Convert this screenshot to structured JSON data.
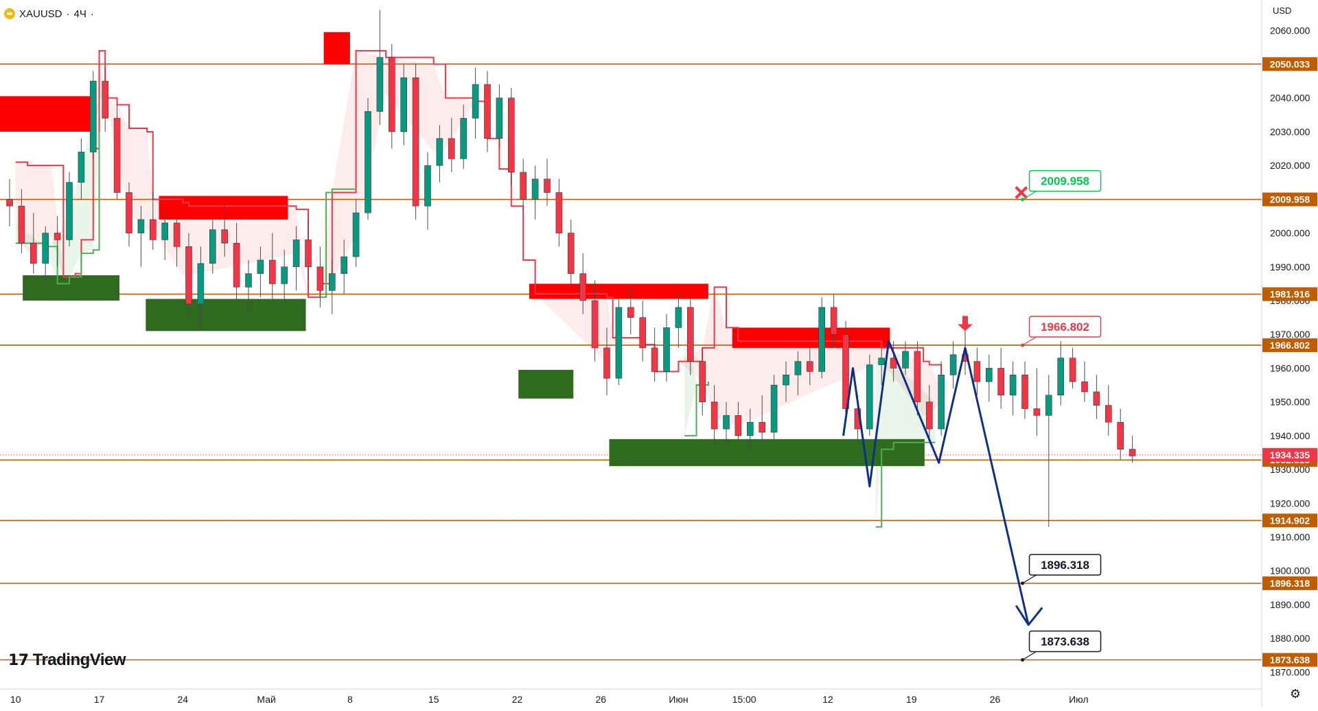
{
  "header": {
    "symbol": "XAUUSD",
    "separator": "·",
    "timeframe": "4Ч",
    "dot": "·"
  },
  "currency": "USD",
  "brand": "TradingView",
  "icons": {
    "symbol": "gold-coin-icon",
    "logo": "tradingview-logo-icon",
    "settings": "gear-icon",
    "invalidation": "cross-icon",
    "entry": "down-arrow-icon"
  },
  "chart_data": {
    "type": "candlestick",
    "ylim": [
      1865,
      2069
    ],
    "y_ticks": [
      1870,
      1880,
      1890,
      1900,
      1910,
      1920,
      1930,
      1940,
      1950,
      1960,
      1970,
      1980,
      1990,
      2000,
      2010,
      2020,
      2030,
      2040,
      2050,
      2060
    ],
    "y_tick_labels": [
      "1870.000",
      "1880.000",
      "1890.000",
      "1900.000",
      "1910.000",
      "1920.000",
      "1930.000",
      "1940.000",
      "1950.000",
      "1960.000",
      "1970.000",
      "1980.000",
      "1990.000",
      "2000.000",
      "2010.000",
      "2020.000",
      "2030.000",
      "2040.000",
      "2050.000",
      "2060.000"
    ],
    "x_labels": [
      {
        "t": 0.5,
        "label": "10"
      },
      {
        "t": 7.5,
        "label": "17"
      },
      {
        "t": 14.5,
        "label": "24"
      },
      {
        "t": 21.5,
        "label": "Май"
      },
      {
        "t": 28.5,
        "label": "8"
      },
      {
        "t": 35.5,
        "label": "15"
      },
      {
        "t": 42.5,
        "label": "22"
      },
      {
        "t": 49.5,
        "label": "26"
      },
      {
        "t": 56.0,
        "label": "Июн"
      },
      {
        "t": 61.5,
        "label": "15:00"
      },
      {
        "t": 68.5,
        "label": "12"
      },
      {
        "t": 75.5,
        "label": "19"
      },
      {
        "t": 82.5,
        "label": "26"
      },
      {
        "t": 89.5,
        "label": "Июл"
      }
    ],
    "x_range": [
      0,
      93
    ],
    "levels": [
      {
        "value": 2050.033,
        "label": "2050.033"
      },
      {
        "value": 2009.958,
        "label": "2009.958"
      },
      {
        "value": 1981.916,
        "label": "1981.916"
      },
      {
        "value": 1966.802,
        "label": "1966.802"
      },
      {
        "value": 1932.815,
        "label": "1932.815"
      },
      {
        "value": 1914.902,
        "label": "1914.902"
      },
      {
        "value": 1896.318,
        "label": "1896.318"
      },
      {
        "value": 1873.638,
        "label": "1873.638"
      }
    ],
    "current_price": {
      "value": 1934.335,
      "label": "1934.335"
    },
    "callouts": [
      {
        "t": 84.8,
        "value": 2009.958,
        "label": "2009.958",
        "style": "green"
      },
      {
        "t": 84.8,
        "value": 1966.802,
        "label": "1966.802",
        "style": "red"
      },
      {
        "t": 84.8,
        "value": 1896.318,
        "label": "1896.318",
        "style": "black"
      },
      {
        "t": 84.8,
        "value": 1873.638,
        "label": "1873.638",
        "style": "black"
      }
    ],
    "supply_zones": [
      {
        "t0": -1,
        "t1": 7.2,
        "low": 2030,
        "high": 2040.5
      },
      {
        "t0": 12.5,
        "t1": 23.3,
        "low": 2004,
        "high": 2011
      },
      {
        "t0": 26.3,
        "t1": 28.5,
        "low": 2050,
        "high": 2059.5
      },
      {
        "t0": 43.5,
        "t1": 58.5,
        "low": 1980.5,
        "high": 1985
      },
      {
        "t0": 60.5,
        "t1": 73.7,
        "low": 1966,
        "high": 1972
      }
    ],
    "demand_zones": [
      {
        "t0": 1.1,
        "t1": 9.2,
        "low": 1980,
        "high": 1987.5
      },
      {
        "t0": 11.4,
        "t1": 24.8,
        "low": 1971,
        "high": 1980.5
      },
      {
        "t0": 42.6,
        "t1": 47.2,
        "low": 1951,
        "high": 1959.5
      },
      {
        "t0": 50.2,
        "t1": 76.6,
        "low": 1931,
        "high": 1939
      }
    ],
    "trail_stop": [
      {
        "t": 0.5,
        "v": 2021
      },
      {
        "t": 1.5,
        "v": 2020
      },
      {
        "t": 3.5,
        "v": 2020
      },
      {
        "t": 4.5,
        "v": 1987
      },
      {
        "t": 5.5,
        "v": 1988
      },
      {
        "t": 6.0,
        "v": 1998
      },
      {
        "t": 7.0,
        "v": 2025
      },
      {
        "t": 7.5,
        "v": 2054
      },
      {
        "t": 8.0,
        "v": 2040
      },
      {
        "t": 9.0,
        "v": 2038
      },
      {
        "t": 10.0,
        "v": 2031
      },
      {
        "t": 11.5,
        "v": 2030
      },
      {
        "t": 12.0,
        "v": 2010
      },
      {
        "t": 14.5,
        "v": 2009
      },
      {
        "t": 15.0,
        "v": 2008
      },
      {
        "t": 24.0,
        "v": 2007
      },
      {
        "t": 25.0,
        "v": 1981
      },
      {
        "t": 26.0,
        "v": 1985
      },
      {
        "t": 27.0,
        "v": 2012
      },
      {
        "t": 29.0,
        "v": 2054
      },
      {
        "t": 31.5,
        "v": 2052
      },
      {
        "t": 35.5,
        "v": 2050
      },
      {
        "t": 36.5,
        "v": 2040
      },
      {
        "t": 39.0,
        "v": 2039
      },
      {
        "t": 40.0,
        "v": 2028
      },
      {
        "t": 41.0,
        "v": 2019
      },
      {
        "t": 42.0,
        "v": 2008
      },
      {
        "t": 43.0,
        "v": 1992
      },
      {
        "t": 44.0,
        "v": 1982
      },
      {
        "t": 50.0,
        "v": 1981
      },
      {
        "t": 50.5,
        "v": 1969
      },
      {
        "t": 53.0,
        "v": 1967
      },
      {
        "t": 54.0,
        "v": 1959
      },
      {
        "t": 56.0,
        "v": 1962
      },
      {
        "t": 58.0,
        "v": 1966
      },
      {
        "t": 59.0,
        "v": 1984
      },
      {
        "t": 60.0,
        "v": 1972
      },
      {
        "t": 61.0,
        "v": 1968
      },
      {
        "t": 73.0,
        "v": 1966
      },
      {
        "t": 76.5,
        "v": 1962
      },
      {
        "t": 77.0,
        "v": 1961
      },
      {
        "t": 78.0,
        "v": 1954
      }
    ],
    "support_line": [
      {
        "t": 0.5,
        "v": 1997
      },
      {
        "t": 3.0,
        "v": 1996
      },
      {
        "t": 4.0,
        "v": 1985
      },
      {
        "t": 5.0,
        "v": 1987
      },
      {
        "t": 6.0,
        "v": 1994
      },
      {
        "t": 7.0,
        "v": 1995
      },
      {
        "t": 7.5,
        "v": 2030
      },
      {
        "t": 26.0,
        "v": 1981
      },
      {
        "t": 26.5,
        "v": 2012
      },
      {
        "t": 27.0,
        "v": 2013
      },
      {
        "t": 29.0,
        "v": 2013
      },
      {
        "t": 56.5,
        "v": 1940
      },
      {
        "t": 57.5,
        "v": 1955
      },
      {
        "t": 58.5,
        "v": 1956
      },
      {
        "t": 72.5,
        "v": 1913
      },
      {
        "t": 73.0,
        "v": 1936
      },
      {
        "t": 74.0,
        "v": 1938
      },
      {
        "t": 77.5,
        "v": 1938
      }
    ],
    "projection_path": [
      {
        "t": 69.8,
        "v": 1940
      },
      {
        "t": 70.6,
        "v": 1960
      },
      {
        "t": 72.0,
        "v": 1925
      },
      {
        "t": 73.6,
        "v": 1968
      },
      {
        "t": 77.8,
        "v": 1932
      },
      {
        "t": 80.0,
        "v": 1966
      },
      {
        "t": 85.3,
        "v": 1884
      }
    ],
    "invalidation_marker": {
      "t": 84.7,
      "value": 2012
    },
    "entry_marker": {
      "t": 80.0,
      "value": 1971
    },
    "candles": [
      {
        "o": 2010,
        "h": 2016,
        "l": 2002,
        "c": 2008
      },
      {
        "o": 2008,
        "h": 2013,
        "l": 1994,
        "c": 1997
      },
      {
        "o": 1997,
        "h": 2006,
        "l": 1988,
        "c": 1991
      },
      {
        "o": 1991,
        "h": 2002,
        "l": 1985,
        "c": 2000
      },
      {
        "o": 2000,
        "h": 2005,
        "l": 1990,
        "c": 1998
      },
      {
        "o": 1998,
        "h": 2018,
        "l": 1996,
        "c": 2015
      },
      {
        "o": 2015,
        "h": 2028,
        "l": 2010,
        "c": 2024
      },
      {
        "o": 2024,
        "h": 2048,
        "l": 2022,
        "c": 2045
      },
      {
        "o": 2045,
        "h": 2049,
        "l": 2030,
        "c": 2034
      },
      {
        "o": 2034,
        "h": 2038,
        "l": 2010,
        "c": 2012
      },
      {
        "o": 2012,
        "h": 2015,
        "l": 1996,
        "c": 2000
      },
      {
        "o": 2000,
        "h": 2008,
        "l": 1990,
        "c": 2004
      },
      {
        "o": 2004,
        "h": 2012,
        "l": 1995,
        "c": 1998
      },
      {
        "o": 1998,
        "h": 2006,
        "l": 1992,
        "c": 2003
      },
      {
        "o": 2003,
        "h": 2008,
        "l": 1990,
        "c": 1996
      },
      {
        "o": 1996,
        "h": 2000,
        "l": 1975,
        "c": 1979
      },
      {
        "o": 1979,
        "h": 1996,
        "l": 1972,
        "c": 1991
      },
      {
        "o": 1991,
        "h": 2004,
        "l": 1988,
        "c": 2001
      },
      {
        "o": 2001,
        "h": 2009,
        "l": 1993,
        "c": 1997
      },
      {
        "o": 1997,
        "h": 2003,
        "l": 1980,
        "c": 1984
      },
      {
        "o": 1984,
        "h": 1992,
        "l": 1976,
        "c": 1988
      },
      {
        "o": 1988,
        "h": 1996,
        "l": 1981,
        "c": 1992
      },
      {
        "o": 1992,
        "h": 2000,
        "l": 1980,
        "c": 1985
      },
      {
        "o": 1985,
        "h": 1995,
        "l": 1979,
        "c": 1990
      },
      {
        "o": 1990,
        "h": 2002,
        "l": 1983,
        "c": 1998
      },
      {
        "o": 1998,
        "h": 2004,
        "l": 1986,
        "c": 1990
      },
      {
        "o": 1990,
        "h": 1996,
        "l": 1978,
        "c": 1983
      },
      {
        "o": 1983,
        "h": 1992,
        "l": 1976,
        "c": 1988
      },
      {
        "o": 1988,
        "h": 1998,
        "l": 1982,
        "c": 1993
      },
      {
        "o": 1993,
        "h": 2010,
        "l": 1990,
        "c": 2006
      },
      {
        "o": 2006,
        "h": 2040,
        "l": 2004,
        "c": 2036
      },
      {
        "o": 2036,
        "h": 2066,
        "l": 2032,
        "c": 2052
      },
      {
        "o": 2052,
        "h": 2056,
        "l": 2025,
        "c": 2030
      },
      {
        "o": 2030,
        "h": 2050,
        "l": 2026,
        "c": 2046
      },
      {
        "o": 2046,
        "h": 2050,
        "l": 2004,
        "c": 2008
      },
      {
        "o": 2008,
        "h": 2024,
        "l": 2001,
        "c": 2020
      },
      {
        "o": 2020,
        "h": 2032,
        "l": 2015,
        "c": 2028
      },
      {
        "o": 2028,
        "h": 2034,
        "l": 2018,
        "c": 2022
      },
      {
        "o": 2022,
        "h": 2038,
        "l": 2019,
        "c": 2034
      },
      {
        "o": 2034,
        "h": 2049,
        "l": 2028,
        "c": 2044
      },
      {
        "o": 2044,
        "h": 2048,
        "l": 2024,
        "c": 2028
      },
      {
        "o": 2028,
        "h": 2044,
        "l": 2025,
        "c": 2040
      },
      {
        "o": 2040,
        "h": 2043,
        "l": 2014,
        "c": 2018
      },
      {
        "o": 2018,
        "h": 2022,
        "l": 2006,
        "c": 2010
      },
      {
        "o": 2010,
        "h": 2020,
        "l": 2004,
        "c": 2016
      },
      {
        "o": 2016,
        "h": 2022,
        "l": 2008,
        "c": 2012
      },
      {
        "o": 2012,
        "h": 2016,
        "l": 1996,
        "c": 2000
      },
      {
        "o": 2000,
        "h": 2004,
        "l": 1985,
        "c": 1988
      },
      {
        "o": 1988,
        "h": 1994,
        "l": 1976,
        "c": 1980
      },
      {
        "o": 1980,
        "h": 1986,
        "l": 1962,
        "c": 1966
      },
      {
        "o": 1966,
        "h": 1972,
        "l": 1952,
        "c": 1957
      },
      {
        "o": 1957,
        "h": 1982,
        "l": 1955,
        "c": 1978
      },
      {
        "o": 1978,
        "h": 1984,
        "l": 1970,
        "c": 1975
      },
      {
        "o": 1975,
        "h": 1980,
        "l": 1962,
        "c": 1966
      },
      {
        "o": 1966,
        "h": 1972,
        "l": 1956,
        "c": 1959
      },
      {
        "o": 1959,
        "h": 1976,
        "l": 1956,
        "c": 1972
      },
      {
        "o": 1972,
        "h": 1982,
        "l": 1966,
        "c": 1978
      },
      {
        "o": 1978,
        "h": 1982,
        "l": 1958,
        "c": 1962
      },
      {
        "o": 1962,
        "h": 1966,
        "l": 1946,
        "c": 1950
      },
      {
        "o": 1950,
        "h": 1955,
        "l": 1937,
        "c": 1942
      },
      {
        "o": 1942,
        "h": 1950,
        "l": 1937,
        "c": 1946
      },
      {
        "o": 1946,
        "h": 1950,
        "l": 1938,
        "c": 1940
      },
      {
        "o": 1940,
        "h": 1948,
        "l": 1935,
        "c": 1944
      },
      {
        "o": 1944,
        "h": 1952,
        "l": 1938,
        "c": 1941
      },
      {
        "o": 1941,
        "h": 1958,
        "l": 1939,
        "c": 1955
      },
      {
        "o": 1955,
        "h": 1962,
        "l": 1950,
        "c": 1958
      },
      {
        "o": 1958,
        "h": 1965,
        "l": 1952,
        "c": 1962
      },
      {
        "o": 1962,
        "h": 1966,
        "l": 1955,
        "c": 1959
      },
      {
        "o": 1959,
        "h": 1981,
        "l": 1957,
        "c": 1978
      },
      {
        "o": 1978,
        "h": 1982,
        "l": 1966,
        "c": 1970
      },
      {
        "o": 1970,
        "h": 1974,
        "l": 1944,
        "c": 1948
      },
      {
        "o": 1948,
        "h": 1952,
        "l": 1938,
        "c": 1942
      },
      {
        "o": 1942,
        "h": 1964,
        "l": 1940,
        "c": 1961
      },
      {
        "o": 1961,
        "h": 1966,
        "l": 1955,
        "c": 1963
      },
      {
        "o": 1963,
        "h": 1968,
        "l": 1956,
        "c": 1960
      },
      {
        "o": 1960,
        "h": 1968,
        "l": 1958,
        "c": 1965
      },
      {
        "o": 1965,
        "h": 1968,
        "l": 1946,
        "c": 1950
      },
      {
        "o": 1950,
        "h": 1955,
        "l": 1939,
        "c": 1942
      },
      {
        "o": 1942,
        "h": 1962,
        "l": 1940,
        "c": 1958
      },
      {
        "o": 1958,
        "h": 1968,
        "l": 1954,
        "c": 1964
      },
      {
        "o": 1964,
        "h": 1972,
        "l": 1958,
        "c": 1962
      },
      {
        "o": 1962,
        "h": 1966,
        "l": 1952,
        "c": 1956
      },
      {
        "o": 1956,
        "h": 1964,
        "l": 1950,
        "c": 1960
      },
      {
        "o": 1960,
        "h": 1966,
        "l": 1948,
        "c": 1952
      },
      {
        "o": 1952,
        "h": 1962,
        "l": 1946,
        "c": 1958
      },
      {
        "o": 1958,
        "h": 1962,
        "l": 1945,
        "c": 1948
      },
      {
        "o": 1948,
        "h": 1960,
        "l": 1940,
        "c": 1946
      },
      {
        "o": 1946,
        "h": 1958,
        "l": 1913,
        "c": 1952
      },
      {
        "o": 1952,
        "h": 1968,
        "l": 1949,
        "c": 1963
      },
      {
        "o": 1963,
        "h": 1966,
        "l": 1954,
        "c": 1956
      },
      {
        "o": 1956,
        "h": 1962,
        "l": 1950,
        "c": 1953
      },
      {
        "o": 1953,
        "h": 1958,
        "l": 1945,
        "c": 1949
      },
      {
        "o": 1949,
        "h": 1955,
        "l": 1940,
        "c": 1944
      },
      {
        "o": 1944,
        "h": 1948,
        "l": 1933,
        "c": 1936
      },
      {
        "o": 1936,
        "h": 1940,
        "l": 1932,
        "c": 1934
      }
    ]
  }
}
